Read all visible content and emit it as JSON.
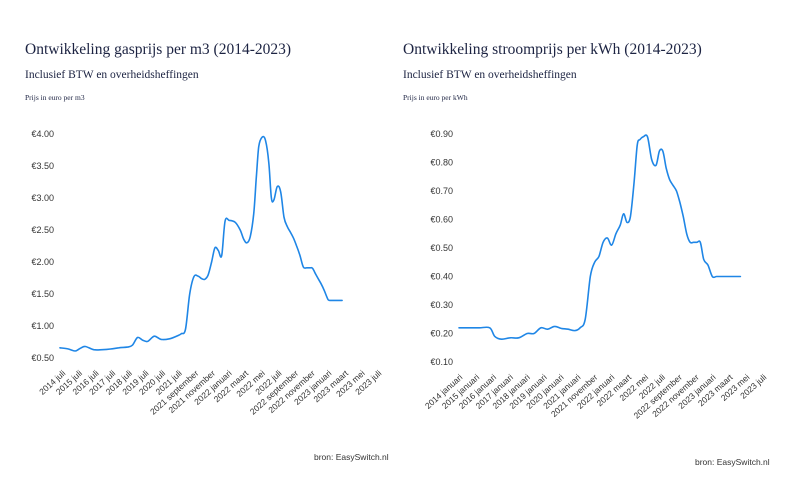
{
  "chart_data": [
    {
      "type": "line",
      "title": "Ontwikkeling gasprijs per m3 (2014-2023)",
      "subtitle": "Inclusief BTW en overheidsheffingen",
      "ylabel": "Prijs in euro per m3",
      "source": "bron: EasySwitch.nl",
      "ylim": [
        0.5,
        4.0
      ],
      "y_ticks": [
        0.5,
        1.0,
        1.5,
        2.0,
        2.5,
        3.0,
        3.5,
        4.0
      ],
      "y_tick_labels": [
        "€0.50",
        "€1.00",
        "€1.50",
        "€2.00",
        "€2.50",
        "€3.00",
        "€3.50",
        "€4.00"
      ],
      "categories": [
        "2014 juli",
        "2015 juli",
        "2016 juli",
        "2017 juli",
        "2018 juli",
        "2019 juli",
        "2020 juli",
        "2021 juli",
        "2021 september",
        "2021 november",
        "2022 januari",
        "2022 maart",
        "2022 mei",
        "2022 juli",
        "2022 september",
        "2022 november",
        "2023 januari",
        "2023 maart",
        "2023 mei",
        "2023 juli"
      ],
      "color": "#1f86e6",
      "grid": false,
      "series": [
        {
          "x": [
            0,
            0.5,
            0.9,
            1.2,
            1.5,
            2,
            2.5,
            3,
            3.5,
            4,
            4.3,
            4.6,
            4.9,
            5.2,
            5.6,
            6,
            6.5,
            7,
            7.2,
            7.45,
            7.7,
            7.95,
            8.2,
            8.4,
            8.6,
            8.8,
            9,
            9.2,
            9.4,
            9.6,
            9.8,
            10.05,
            10.4,
            10.7,
            10.9,
            11.1,
            11.3,
            11.5,
            11.65,
            11.8,
            12,
            12.2,
            12.4,
            12.55,
            12.7,
            12.9,
            13.1,
            13.3,
            13.5,
            13.65,
            13.85,
            14.05,
            14.25,
            14.45,
            14.65,
            14.85,
            15.0,
            15.2,
            15.5,
            15.7,
            15.9,
            16.0,
            16.2,
            16.4,
            16.6,
            16.75
          ],
          "values": [
            0.66,
            0.64,
            0.61,
            0.65,
            0.68,
            0.63,
            0.63,
            0.64,
            0.66,
            0.67,
            0.7,
            0.82,
            0.78,
            0.76,
            0.84,
            0.79,
            0.8,
            0.85,
            0.88,
            0.95,
            1.5,
            1.77,
            1.78,
            1.74,
            1.73,
            1.8,
            2.0,
            2.22,
            2.18,
            2.1,
            2.64,
            2.65,
            2.62,
            2.5,
            2.36,
            2.3,
            2.4,
            2.75,
            3.3,
            3.8,
            3.95,
            3.9,
            3.55,
            3.0,
            2.97,
            3.18,
            3.1,
            2.7,
            2.55,
            2.48,
            2.38,
            2.25,
            2.1,
            1.92,
            1.91,
            1.91,
            1.9,
            1.8,
            1.66,
            1.55,
            1.42,
            1.4,
            1.4,
            1.4,
            1.4,
            1.4
          ]
        }
      ]
    },
    {
      "type": "line",
      "title": "Ontwikkeling stroomprijs per kWh (2014-2023)",
      "subtitle": "Inclusief BTW en overheidsheffingen",
      "ylabel": "Prijs in euro per kWh",
      "source": "bron: EasySwitch.nl",
      "ylim": [
        0.1,
        0.9
      ],
      "y_ticks": [
        0.1,
        0.2,
        0.3,
        0.4,
        0.5,
        0.6,
        0.7,
        0.8,
        0.9
      ],
      "y_tick_labels": [
        "€0.10",
        "€0.20",
        "€0.30",
        "€0.40",
        "€0.50",
        "€0.60",
        "€0.70",
        "€0.80",
        "€0.90"
      ],
      "categories": [
        "2014 januari",
        "2015 januari",
        "2016 januari",
        "2017 januari",
        "2018 januari",
        "2019 januari",
        "2020 januari",
        "2021 januari",
        "2021 november",
        "2022 januari",
        "2022 maart",
        "2022 mei",
        "2022 juli",
        "2022 september",
        "2022 november",
        "2023 januari",
        "2023 maart",
        "2023 mei",
        "2023 juli"
      ],
      "color": "#1f86e6",
      "grid": false,
      "series": [
        {
          "x": [
            0,
            0.6,
            1.2,
            1.8,
            2.1,
            2.5,
            3,
            3.5,
            4,
            4.4,
            4.8,
            5.2,
            5.6,
            6.0,
            6.4,
            6.8,
            7.1,
            7.4,
            7.7,
            7.95,
            8.2,
            8.45,
            8.7,
            8.95,
            9.2,
            9.45,
            9.65,
            9.85,
            10.05,
            10.25,
            10.45,
            10.6,
            10.8,
            11.05,
            11.3,
            11.55,
            11.75,
            11.95,
            12.15,
            12.35,
            12.55,
            12.75,
            12.95,
            13.15,
            13.35,
            13.55,
            13.75,
            13.95,
            14.15,
            14.35,
            14.6,
            14.85,
            15.1,
            15.35,
            15.6,
            15.85,
            16.1,
            16.3,
            16.5
          ],
          "values": [
            0.22,
            0.22,
            0.22,
            0.22,
            0.19,
            0.18,
            0.185,
            0.185,
            0.2,
            0.2,
            0.22,
            0.215,
            0.225,
            0.218,
            0.215,
            0.21,
            0.22,
            0.25,
            0.4,
            0.45,
            0.47,
            0.52,
            0.535,
            0.51,
            0.55,
            0.58,
            0.62,
            0.59,
            0.61,
            0.72,
            0.86,
            0.88,
            0.89,
            0.89,
            0.81,
            0.79,
            0.84,
            0.84,
            0.78,
            0.74,
            0.72,
            0.7,
            0.66,
            0.61,
            0.55,
            0.52,
            0.52,
            0.52,
            0.52,
            0.46,
            0.44,
            0.4,
            0.4,
            0.4,
            0.4,
            0.4,
            0.4,
            0.4,
            0.4
          ]
        }
      ]
    }
  ]
}
